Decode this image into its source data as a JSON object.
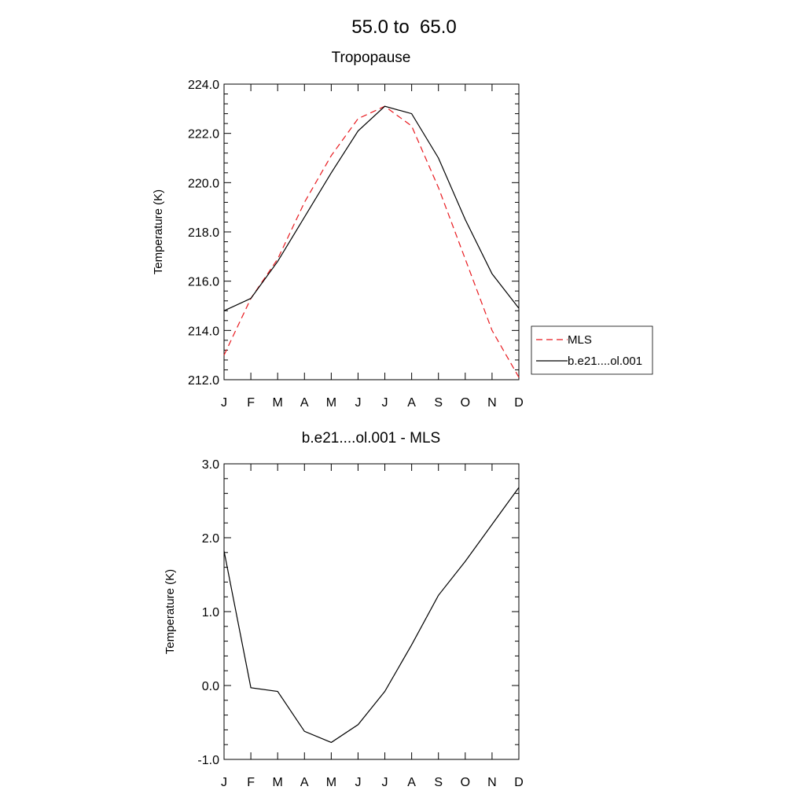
{
  "figure": {
    "title": "55.0 to  65.0"
  },
  "chart_data": [
    {
      "type": "line",
      "title": "Tropopause",
      "xlabel": "",
      "ylabel": "Temperature (K)",
      "categories": [
        "J",
        "F",
        "M",
        "A",
        "M",
        "J",
        "J",
        "A",
        "S",
        "O",
        "N",
        "D"
      ],
      "ylim": [
        212.0,
        224.0
      ],
      "yticks": [
        212.0,
        214.0,
        216.0,
        218.0,
        220.0,
        222.0,
        224.0
      ],
      "ytick_labels": [
        "212.0",
        "214.0",
        "216.0",
        "218.0",
        "220.0",
        "222.0",
        "224.0"
      ],
      "series": [
        {
          "name": "MLS",
          "color": "#e8191e",
          "style": "dashed",
          "values": [
            213.0,
            215.3,
            216.9,
            219.2,
            221.1,
            222.6,
            223.1,
            222.3,
            219.8,
            216.9,
            214.0,
            212.1
          ]
        },
        {
          "name": "b.e21....ol.001",
          "color": "#000000",
          "style": "solid",
          "values": [
            214.8,
            215.3,
            216.8,
            218.6,
            220.4,
            222.1,
            223.1,
            222.8,
            221.0,
            218.5,
            216.3,
            214.9
          ]
        }
      ],
      "legend": {
        "position": "right"
      },
      "grid": false
    },
    {
      "type": "line",
      "title": "b.e21....ol.001 - MLS",
      "xlabel": "",
      "ylabel": "Temperature (K)",
      "categories": [
        "J",
        "F",
        "M",
        "A",
        "M",
        "J",
        "J",
        "A",
        "S",
        "O",
        "N",
        "D"
      ],
      "ylim": [
        -1.0,
        3.0
      ],
      "yticks": [
        -1.0,
        0.0,
        1.0,
        2.0,
        3.0
      ],
      "ytick_labels": [
        "-1.0",
        "0.0",
        "1.0",
        "2.0",
        "3.0"
      ],
      "series": [
        {
          "color": "#000000",
          "style": "solid",
          "values": [
            1.82,
            -0.03,
            -0.08,
            -0.62,
            -0.77,
            -0.53,
            -0.08,
            0.55,
            1.22,
            1.68,
            2.18,
            2.68
          ]
        }
      ],
      "grid": false
    }
  ]
}
